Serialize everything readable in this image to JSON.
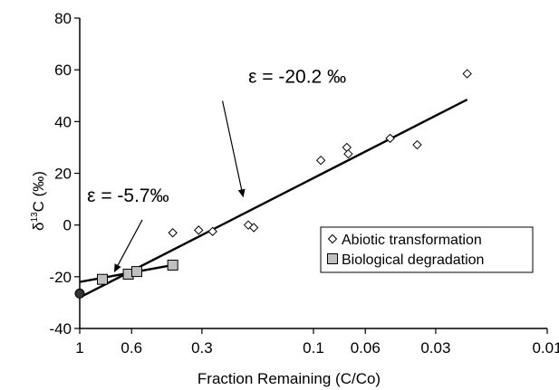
{
  "chart_data": {
    "type": "scatter",
    "xlabel": "Fraction Remaining (C/Co)",
    "ylabel": "δ13C (‰)",
    "ylabel_main": "δ",
    "ylabel_sup": "13",
    "ylabel_rest": "C (‰)",
    "x_scale": "log-reversed",
    "xlim": [
      1,
      0.01
    ],
    "ylim": [
      -40,
      80
    ],
    "y_ticks": [
      -40,
      -20,
      0,
      20,
      40,
      60,
      80
    ],
    "y_tick_labels": [
      "-40",
      "-20",
      "0",
      "20",
      "40",
      "60",
      "80"
    ],
    "x_ticks": [
      1,
      0.6,
      0.3,
      0.1,
      0.06,
      0.03,
      0.01
    ],
    "x_tick_labels": [
      "1",
      "0.6",
      "0.3",
      "0.1",
      "0.06",
      "0.03",
      "0.01"
    ],
    "grid": false,
    "legend_position": "right",
    "series": [
      {
        "name": "Abiotic transformation",
        "marker": "diamond",
        "color": "#ffffff",
        "points": [
          {
            "x": 0.4,
            "y": -3
          },
          {
            "x": 0.31,
            "y": -2
          },
          {
            "x": 0.27,
            "y": -2.5
          },
          {
            "x": 0.19,
            "y": 0
          },
          {
            "x": 0.18,
            "y": -1
          },
          {
            "x": 0.093,
            "y": 25
          },
          {
            "x": 0.072,
            "y": 30
          },
          {
            "x": 0.071,
            "y": 27.5
          },
          {
            "x": 0.047,
            "y": 33.5
          },
          {
            "x": 0.036,
            "y": 31
          },
          {
            "x": 0.022,
            "y": 58.5
          }
        ]
      },
      {
        "name": "Biological degradation",
        "marker": "square",
        "color": "#c0c0c0",
        "points": [
          {
            "x": 0.8,
            "y": -21
          },
          {
            "x": 0.62,
            "y": -19
          },
          {
            "x": 0.57,
            "y": -18
          },
          {
            "x": 0.4,
            "y": -15.5
          }
        ]
      }
    ],
    "fits": [
      {
        "label": "ε = -20.2 ‰",
        "x_start": 1,
        "y_start": -28,
        "x_end": 0.022,
        "y_end": 48.5
      },
      {
        "label": "ε = -5.7‰",
        "x_start": 1,
        "y_start": -22,
        "x_end": 0.4,
        "y_end": -15.5
      }
    ],
    "initial_point": {
      "x": 1,
      "y": -26.5
    },
    "annotations": [
      {
        "text": "ε = -20.2 ‰",
        "text_x": 0.19,
        "text_y": 55,
        "arrow_from_x": 0.245,
        "arrow_from_y": 48,
        "arrow_to_x": 0.2,
        "arrow_to_y": 11
      },
      {
        "text": "ε = -5.7‰",
        "text_x": 0.93,
        "text_y": 9,
        "arrow_from_x": 0.54,
        "arrow_from_y": 2,
        "arrow_to_x": 0.71,
        "arrow_to_y": -18
      }
    ]
  }
}
